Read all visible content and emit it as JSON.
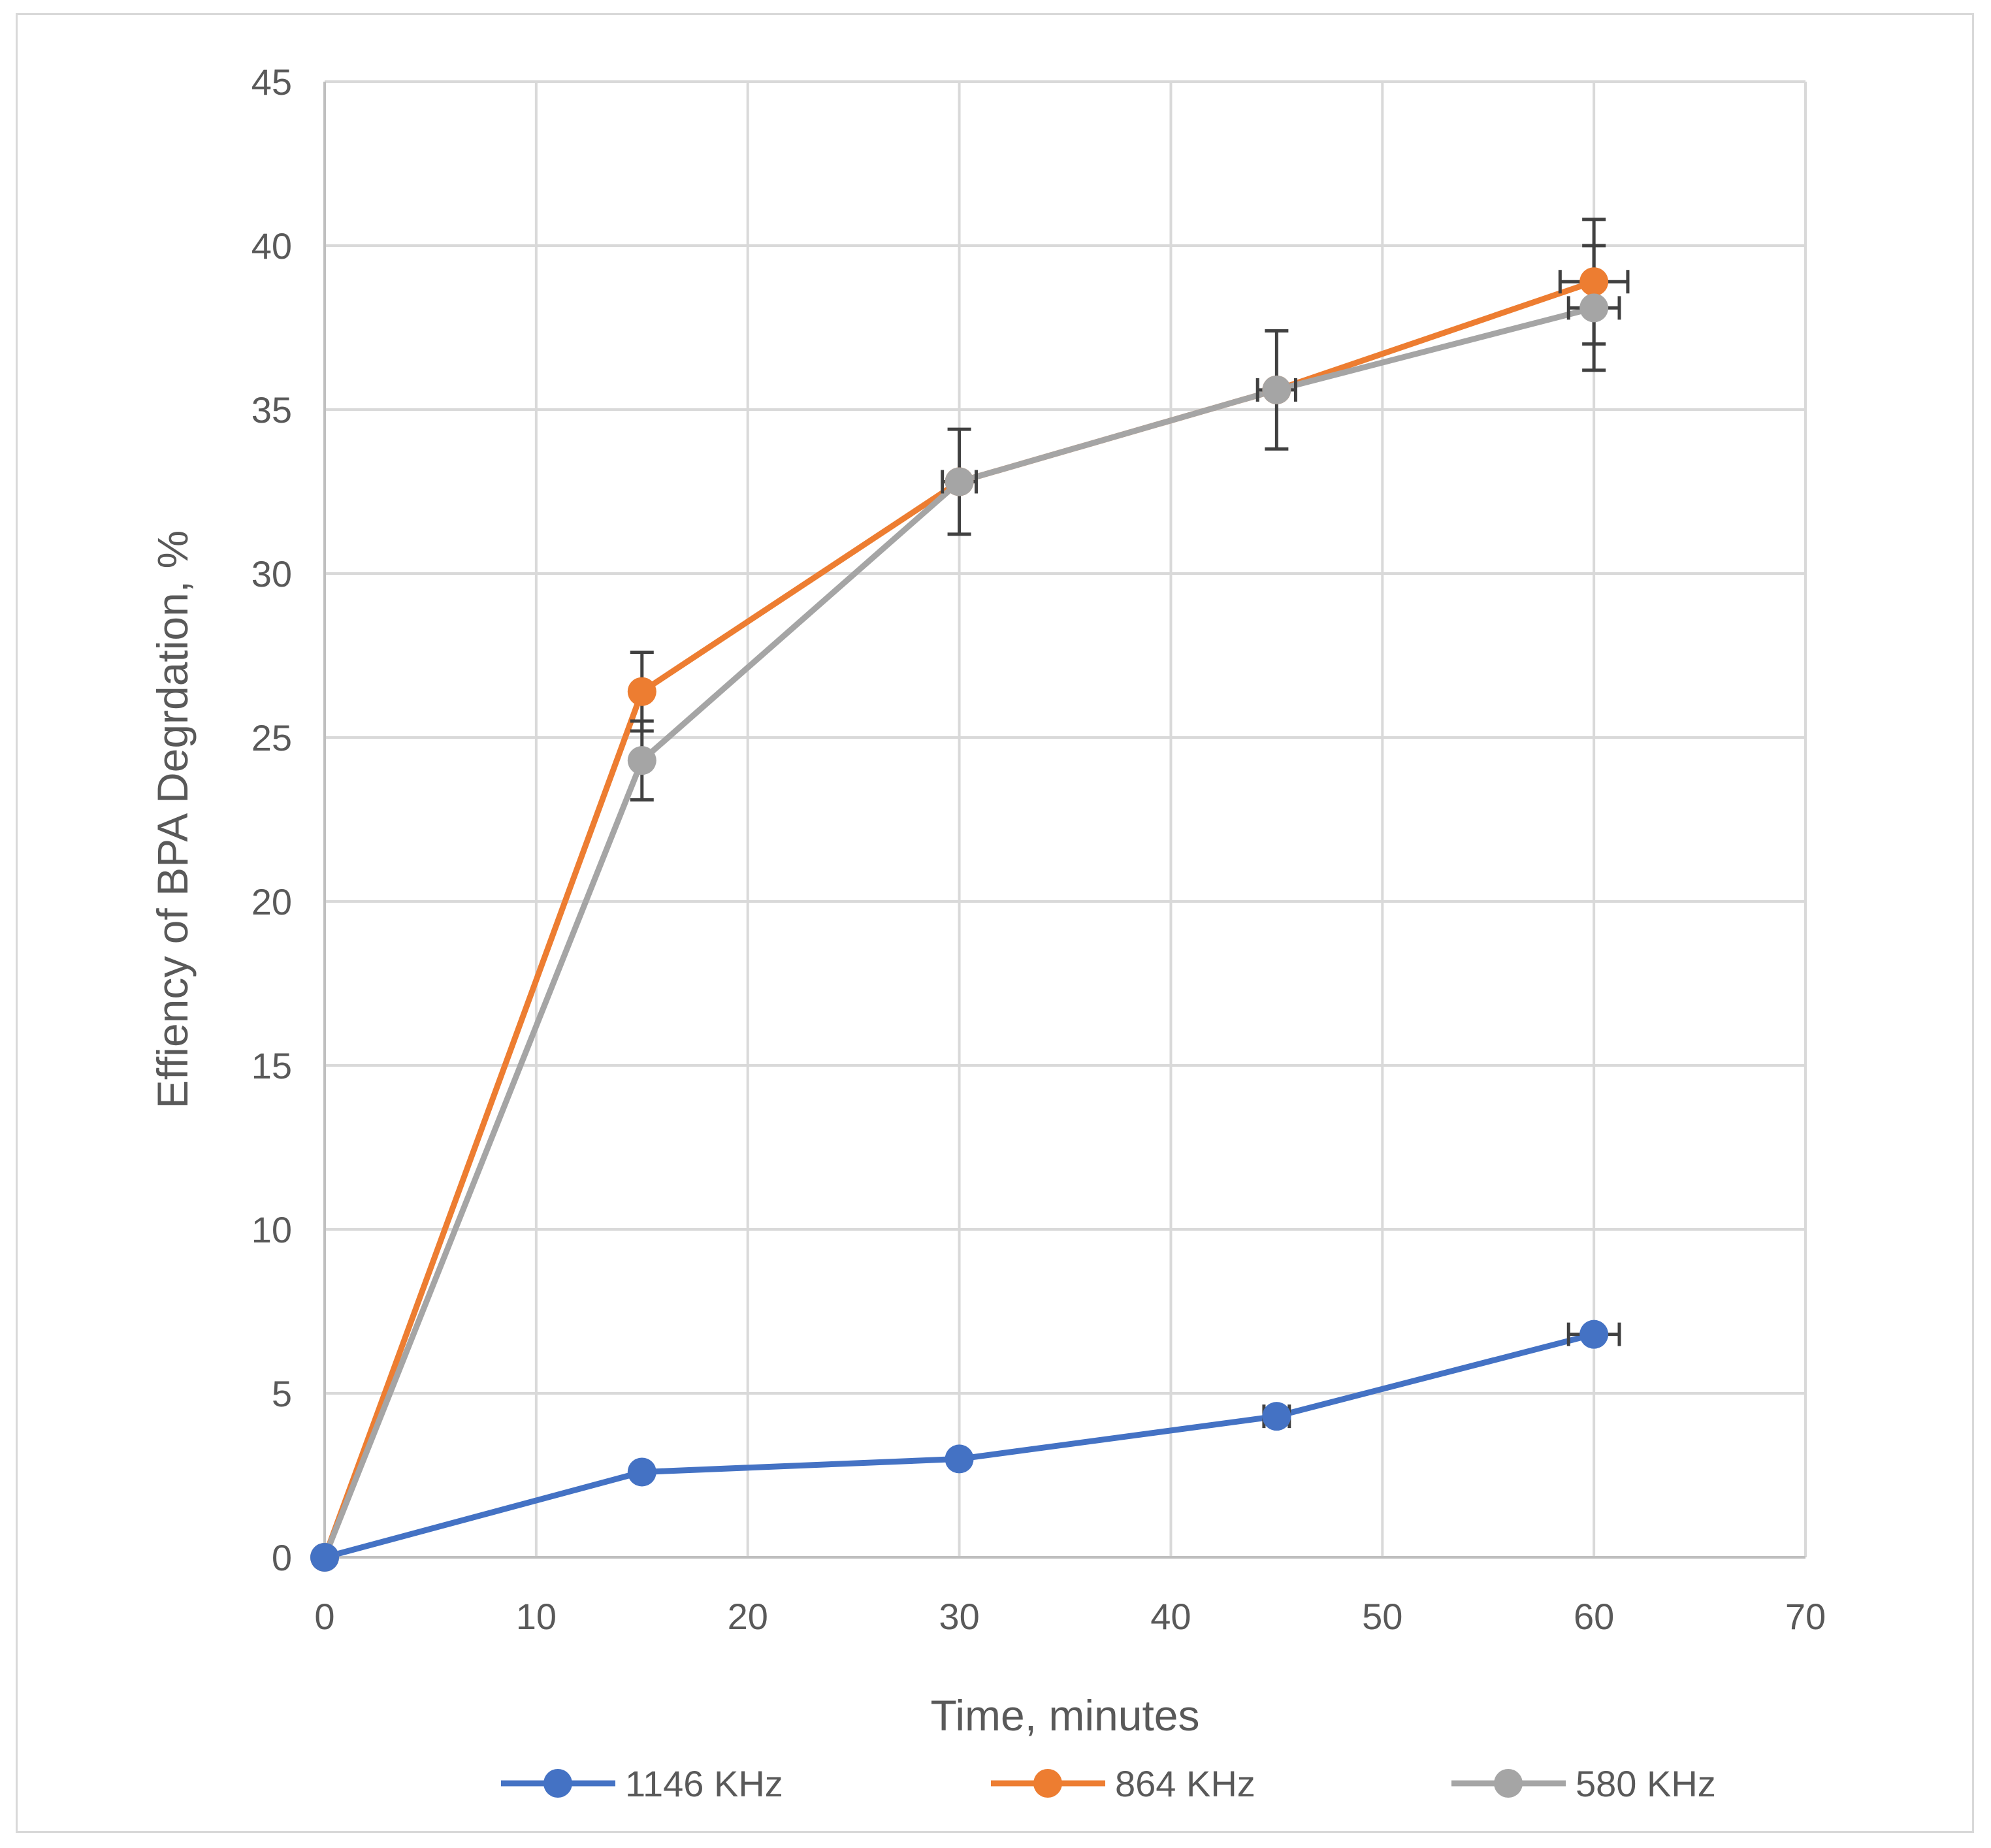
{
  "chart_data": {
    "type": "line",
    "title": "",
    "xlabel": "Time, minutes",
    "ylabel": "Effiency of BPA Degrdation, %",
    "xlim": [
      0,
      70
    ],
    "ylim": [
      0,
      45
    ],
    "x_ticks": [
      0,
      10,
      20,
      30,
      40,
      50,
      60,
      70
    ],
    "y_ticks": [
      0,
      5,
      10,
      15,
      20,
      25,
      30,
      35,
      40,
      45
    ],
    "grid": true,
    "legend_position": "bottom",
    "x": [
      0,
      15,
      30,
      45,
      60
    ],
    "series": [
      {
        "name": "1146 KHz",
        "color": "#4472c4",
        "values": [
          0,
          2.6,
          3.0,
          4.3,
          6.8
        ],
        "y_error": [
          0,
          0,
          0.2,
          0,
          0
        ],
        "x_error": [
          0,
          0,
          0,
          0.6,
          1.2
        ]
      },
      {
        "name": "864 KHz",
        "color": "#ed7d31",
        "values": [
          0,
          26.4,
          32.8,
          35.6,
          38.9
        ],
        "y_error": [
          0,
          1.2,
          0,
          0,
          1.9
        ],
        "x_error": [
          0,
          0,
          0,
          0,
          1.6
        ]
      },
      {
        "name": "580 KHz",
        "color": "#a5a5a5",
        "values": [
          0,
          24.3,
          32.8,
          35.6,
          38.1
        ],
        "y_error": [
          0,
          1.2,
          1.6,
          1.8,
          1.9
        ],
        "x_error": [
          0,
          0,
          0.8,
          0.9,
          1.2
        ]
      }
    ]
  }
}
